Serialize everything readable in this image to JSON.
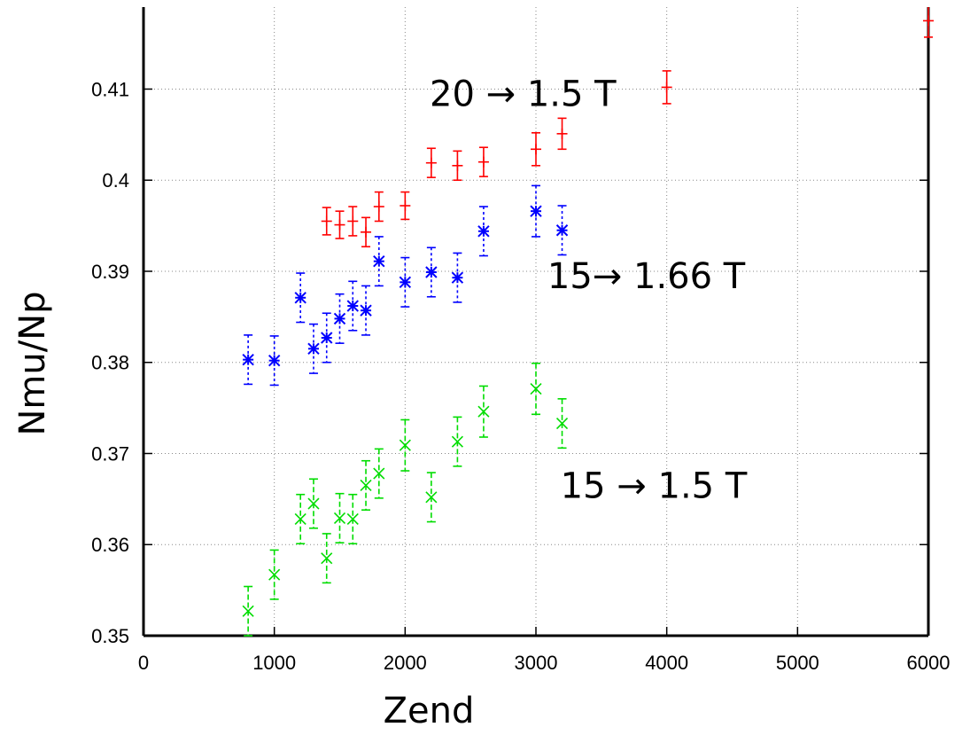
{
  "chart_data": {
    "type": "scatter",
    "xlabel": "Zend",
    "ylabel": "Nmu/Np",
    "xlim": [
      0,
      6000
    ],
    "ylim": [
      0.35,
      0.419
    ],
    "grid": true,
    "x_ticks": [
      0,
      1000,
      2000,
      3000,
      4000,
      5000,
      6000
    ],
    "y_ticks": [
      0.35,
      0.36,
      0.37,
      0.38,
      0.39,
      0.4,
      0.41
    ],
    "x_tick_labels": [
      "0",
      "1000",
      "2000",
      "3000",
      "4000",
      "5000",
      "6000"
    ],
    "y_tick_labels": [
      "0.35",
      "0.36",
      "0.37",
      "0.38",
      "0.39",
      "0.4",
      "0.41"
    ],
    "annotations": [
      {
        "text": "20 → 1.5 T",
        "x": 3000,
        "y": 0.4095
      },
      {
        "text": "15→ 1.66 T",
        "x": 3900,
        "y": 0.3895
      },
      {
        "text": "15 → 1.5 T",
        "x": 4000,
        "y": 0.3665
      }
    ],
    "series": [
      {
        "color": "#ff0000",
        "marker": "plus",
        "x": [
          1400,
          1500,
          1600,
          1700,
          1800,
          2000,
          2200,
          2400,
          2600,
          3000,
          3200,
          4000,
          6000
        ],
        "y": [
          0.3955,
          0.3951,
          0.3955,
          0.3943,
          0.3971,
          0.3972,
          0.4019,
          0.4016,
          0.402,
          0.4034,
          0.4051,
          0.4102,
          0.4175
        ],
        "err": [
          0.0015,
          0.0015,
          0.0016,
          0.0016,
          0.0016,
          0.0015,
          0.0016,
          0.0016,
          0.0016,
          0.0018,
          0.0017,
          0.0018,
          0.0018
        ]
      },
      {
        "color": "#0000ff",
        "marker": "star",
        "x": [
          800,
          1000,
          1200,
          1300,
          1400,
          1500,
          1600,
          1700,
          1800,
          2000,
          2200,
          2400,
          2600,
          3000,
          3200
        ],
        "y": [
          0.3803,
          0.3802,
          0.3871,
          0.3815,
          0.3827,
          0.3848,
          0.3862,
          0.3857,
          0.3911,
          0.3888,
          0.3899,
          0.3893,
          0.3944,
          0.3966,
          0.3945
        ],
        "err": [
          0.0027,
          0.0027,
          0.0027,
          0.0027,
          0.0027,
          0.0027,
          0.0027,
          0.0027,
          0.0027,
          0.0027,
          0.0027,
          0.0027,
          0.0027,
          0.0028,
          0.0027
        ]
      },
      {
        "color": "#00dd00",
        "marker": "cross",
        "x": [
          800,
          1000,
          1200,
          1300,
          1400,
          1500,
          1600,
          1700,
          1800,
          2000,
          2200,
          2400,
          2600,
          3000,
          3200
        ],
        "y": [
          0.3527,
          0.3567,
          0.3628,
          0.3645,
          0.3585,
          0.3629,
          0.3628,
          0.3665,
          0.3678,
          0.3709,
          0.3652,
          0.3713,
          0.3746,
          0.3771,
          0.3733
        ],
        "err": [
          0.0027,
          0.0027,
          0.0027,
          0.0027,
          0.0027,
          0.0027,
          0.0027,
          0.0027,
          0.0027,
          0.0028,
          0.0027,
          0.0027,
          0.0028,
          0.0028,
          0.0027
        ]
      }
    ]
  }
}
